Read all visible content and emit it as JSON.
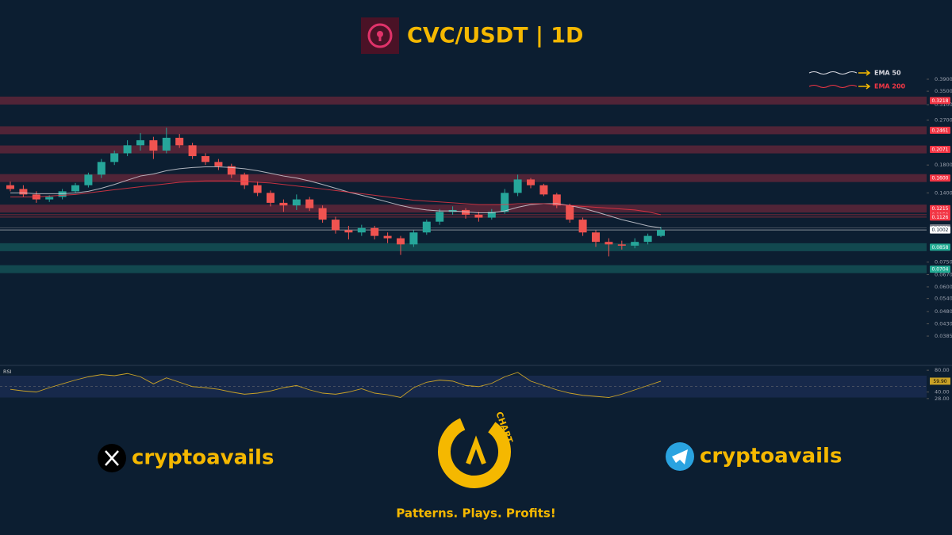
{
  "header": {
    "title": "CVC/USDT | 1D"
  },
  "chart_data": [
    {
      "type": "candlestick",
      "log": true,
      "ylim": [
        0.0356,
        0.434
      ],
      "yticks": [
        {
          "value": 0.39,
          "label": "0.3900"
        },
        {
          "value": 0.35,
          "label": "0.3500"
        },
        {
          "value": 0.31,
          "label": "0.3100"
        },
        {
          "value": 0.27,
          "label": "0.2700"
        },
        {
          "value": 0.18,
          "label": "0.1800"
        },
        {
          "value": 0.14,
          "label": "0.1400"
        },
        {
          "value": 0.075,
          "label": "0.0750"
        },
        {
          "value": 0.067,
          "label": "0.0670"
        },
        {
          "value": 0.06,
          "label": "0.0600"
        },
        {
          "value": 0.054,
          "label": "0.0540"
        },
        {
          "value": 0.048,
          "label": "0.0480"
        },
        {
          "value": 0.043,
          "label": "0.0430"
        },
        {
          "value": 0.0385,
          "label": "0.0385"
        }
      ],
      "up_color": "#26a69a",
      "down_color": "#ef5350",
      "ohlc": {
        "open": [
          0.15,
          0.145,
          0.138,
          0.132,
          0.135,
          0.142,
          0.15,
          0.165,
          0.185,
          0.2,
          0.215,
          0.225,
          0.205,
          0.23,
          0.215,
          0.195,
          0.185,
          0.178,
          0.165,
          0.15,
          0.14,
          0.128,
          0.125,
          0.132,
          0.122,
          0.11,
          0.1,
          0.098,
          0.102,
          0.095,
          0.093,
          0.088,
          0.098,
          0.108,
          0.118,
          0.12,
          0.115,
          0.112,
          0.118,
          0.14,
          0.158,
          0.15,
          0.138,
          0.125,
          0.11,
          0.098,
          0.09,
          0.088,
          0.087,
          0.09,
          0.095
        ],
        "high": [
          0.155,
          0.15,
          0.142,
          0.137,
          0.145,
          0.153,
          0.168,
          0.19,
          0.205,
          0.225,
          0.24,
          0.232,
          0.252,
          0.238,
          0.22,
          0.2,
          0.19,
          0.182,
          0.168,
          0.155,
          0.143,
          0.132,
          0.138,
          0.135,
          0.125,
          0.113,
          0.104,
          0.105,
          0.104,
          0.098,
          0.095,
          0.1,
          0.11,
          0.121,
          0.124,
          0.122,
          0.118,
          0.121,
          0.145,
          0.165,
          0.16,
          0.152,
          0.14,
          0.127,
          0.112,
          0.1,
          0.093,
          0.091,
          0.093,
          0.097,
          0.103
        ],
        "low": [
          0.142,
          0.135,
          0.128,
          0.129,
          0.132,
          0.14,
          0.147,
          0.16,
          0.18,
          0.195,
          0.205,
          0.19,
          0.2,
          0.21,
          0.19,
          0.18,
          0.172,
          0.16,
          0.145,
          0.136,
          0.124,
          0.118,
          0.12,
          0.119,
          0.107,
          0.097,
          0.092,
          0.095,
          0.092,
          0.089,
          0.08,
          0.086,
          0.096,
          0.105,
          0.115,
          0.111,
          0.108,
          0.11,
          0.116,
          0.136,
          0.146,
          0.136,
          0.122,
          0.107,
          0.095,
          0.086,
          0.079,
          0.084,
          0.085,
          0.088,
          0.094
        ],
        "close": [
          0.145,
          0.138,
          0.132,
          0.135,
          0.142,
          0.15,
          0.165,
          0.185,
          0.2,
          0.215,
          0.225,
          0.205,
          0.23,
          0.215,
          0.195,
          0.185,
          0.178,
          0.165,
          0.15,
          0.14,
          0.128,
          0.125,
          0.132,
          0.122,
          0.11,
          0.1,
          0.098,
          0.102,
          0.095,
          0.093,
          0.088,
          0.098,
          0.108,
          0.118,
          0.12,
          0.115,
          0.112,
          0.118,
          0.14,
          0.158,
          0.15,
          0.138,
          0.125,
          0.11,
          0.098,
          0.09,
          0.088,
          0.087,
          0.09,
          0.095,
          0.1002
        ]
      },
      "series": [
        {
          "name": "EMA 50",
          "color": "#d8d8e0",
          "values": [
            0.14,
            0.14,
            0.139,
            0.139,
            0.139,
            0.14,
            0.142,
            0.146,
            0.151,
            0.157,
            0.163,
            0.166,
            0.171,
            0.174,
            0.176,
            0.177,
            0.177,
            0.176,
            0.174,
            0.171,
            0.167,
            0.163,
            0.16,
            0.156,
            0.151,
            0.146,
            0.141,
            0.137,
            0.133,
            0.129,
            0.125,
            0.122,
            0.12,
            0.119,
            0.119,
            0.118,
            0.117,
            0.117,
            0.119,
            0.123,
            0.126,
            0.127,
            0.127,
            0.125,
            0.122,
            0.118,
            0.114,
            0.11,
            0.107,
            0.104,
            0.1021
          ]
        },
        {
          "name": "EMA 200",
          "color": "#f23645",
          "values": [
            0.135,
            0.135,
            0.135,
            0.136,
            0.137,
            0.138,
            0.14,
            0.142,
            0.144,
            0.146,
            0.148,
            0.15,
            0.152,
            0.154,
            0.155,
            0.156,
            0.156,
            0.156,
            0.155,
            0.154,
            0.153,
            0.151,
            0.149,
            0.147,
            0.145,
            0.143,
            0.141,
            0.139,
            0.137,
            0.135,
            0.133,
            0.131,
            0.13,
            0.129,
            0.128,
            0.127,
            0.126,
            0.126,
            0.126,
            0.127,
            0.127,
            0.127,
            0.126,
            0.125,
            0.124,
            0.123,
            0.122,
            0.121,
            0.12,
            0.118,
            0.115
          ]
        }
      ],
      "levels": [
        {
          "value": 0.3218,
          "label": "0.3218",
          "color": "#f23645",
          "kind": "zone"
        },
        {
          "value": 0.2461,
          "label": "0.2461",
          "color": "#f23645",
          "kind": "zone"
        },
        {
          "value": 0.2071,
          "label": "0.2071",
          "color": "#f23645",
          "kind": "zone"
        },
        {
          "value": 0.16,
          "label": "0.1600",
          "color": "#f23645",
          "kind": "zone"
        },
        {
          "value": 0.1215,
          "label": "0.1215",
          "color": "#f23645",
          "kind": "zone"
        },
        {
          "value": 0.115,
          "label": "0.1150",
          "color": "#f23645",
          "kind": "line"
        },
        {
          "value": 0.1126,
          "label": "0.1126",
          "color": "#f23645",
          "kind": "line"
        },
        {
          "value": 0.1021,
          "label": "0.1021",
          "color": "#787b86",
          "kind": "line"
        },
        {
          "value": 0.1002,
          "label": "0.1002",
          "color": "#ffffff",
          "kind": "line"
        },
        {
          "value": 0.0858,
          "label": "0.0858",
          "color": "#22ab94",
          "kind": "zone"
        },
        {
          "value": 0.0704,
          "label": "0.0704",
          "color": "#22ab94",
          "kind": "zone"
        }
      ]
    },
    {
      "type": "line",
      "title": "RSI",
      "ylim": [
        22,
        86
      ],
      "yticks": [
        {
          "value": 80,
          "label": "80.00"
        },
        {
          "value": 40,
          "label": "40.00"
        },
        {
          "value": 28,
          "label": "28.00"
        }
      ],
      "band": [
        30,
        70
      ],
      "midline": 50,
      "series": [
        {
          "color": "#c9a227",
          "values": [
            45,
            42,
            40,
            48,
            55,
            62,
            68,
            72,
            70,
            74,
            68,
            55,
            66,
            58,
            50,
            48,
            45,
            40,
            36,
            38,
            42,
            48,
            52,
            44,
            38,
            36,
            40,
            46,
            38,
            35,
            30,
            48,
            58,
            62,
            60,
            52,
            50,
            56,
            68,
            76,
            60,
            52,
            44,
            38,
            34,
            32,
            30,
            36,
            44,
            52,
            59.9
          ],
          "value_labels": [
            null,
            null,
            null,
            null,
            null,
            null,
            null,
            null,
            null,
            null,
            null,
            null,
            null,
            null,
            null,
            null,
            null,
            null,
            null,
            null,
            null,
            null,
            null,
            null,
            null,
            null,
            null,
            null,
            null,
            null,
            null,
            null,
            null,
            null,
            null,
            null,
            null,
            null,
            null,
            null,
            null,
            null,
            null,
            null,
            null,
            null,
            null,
            null,
            null,
            null,
            "59.90"
          ]
        }
      ]
    }
  ],
  "footer": {
    "x_handle": "cryptoavails",
    "telegram_handle": "cryptoavails",
    "logo_text": "CHART",
    "tagline": "Patterns. Plays. Profits!"
  }
}
